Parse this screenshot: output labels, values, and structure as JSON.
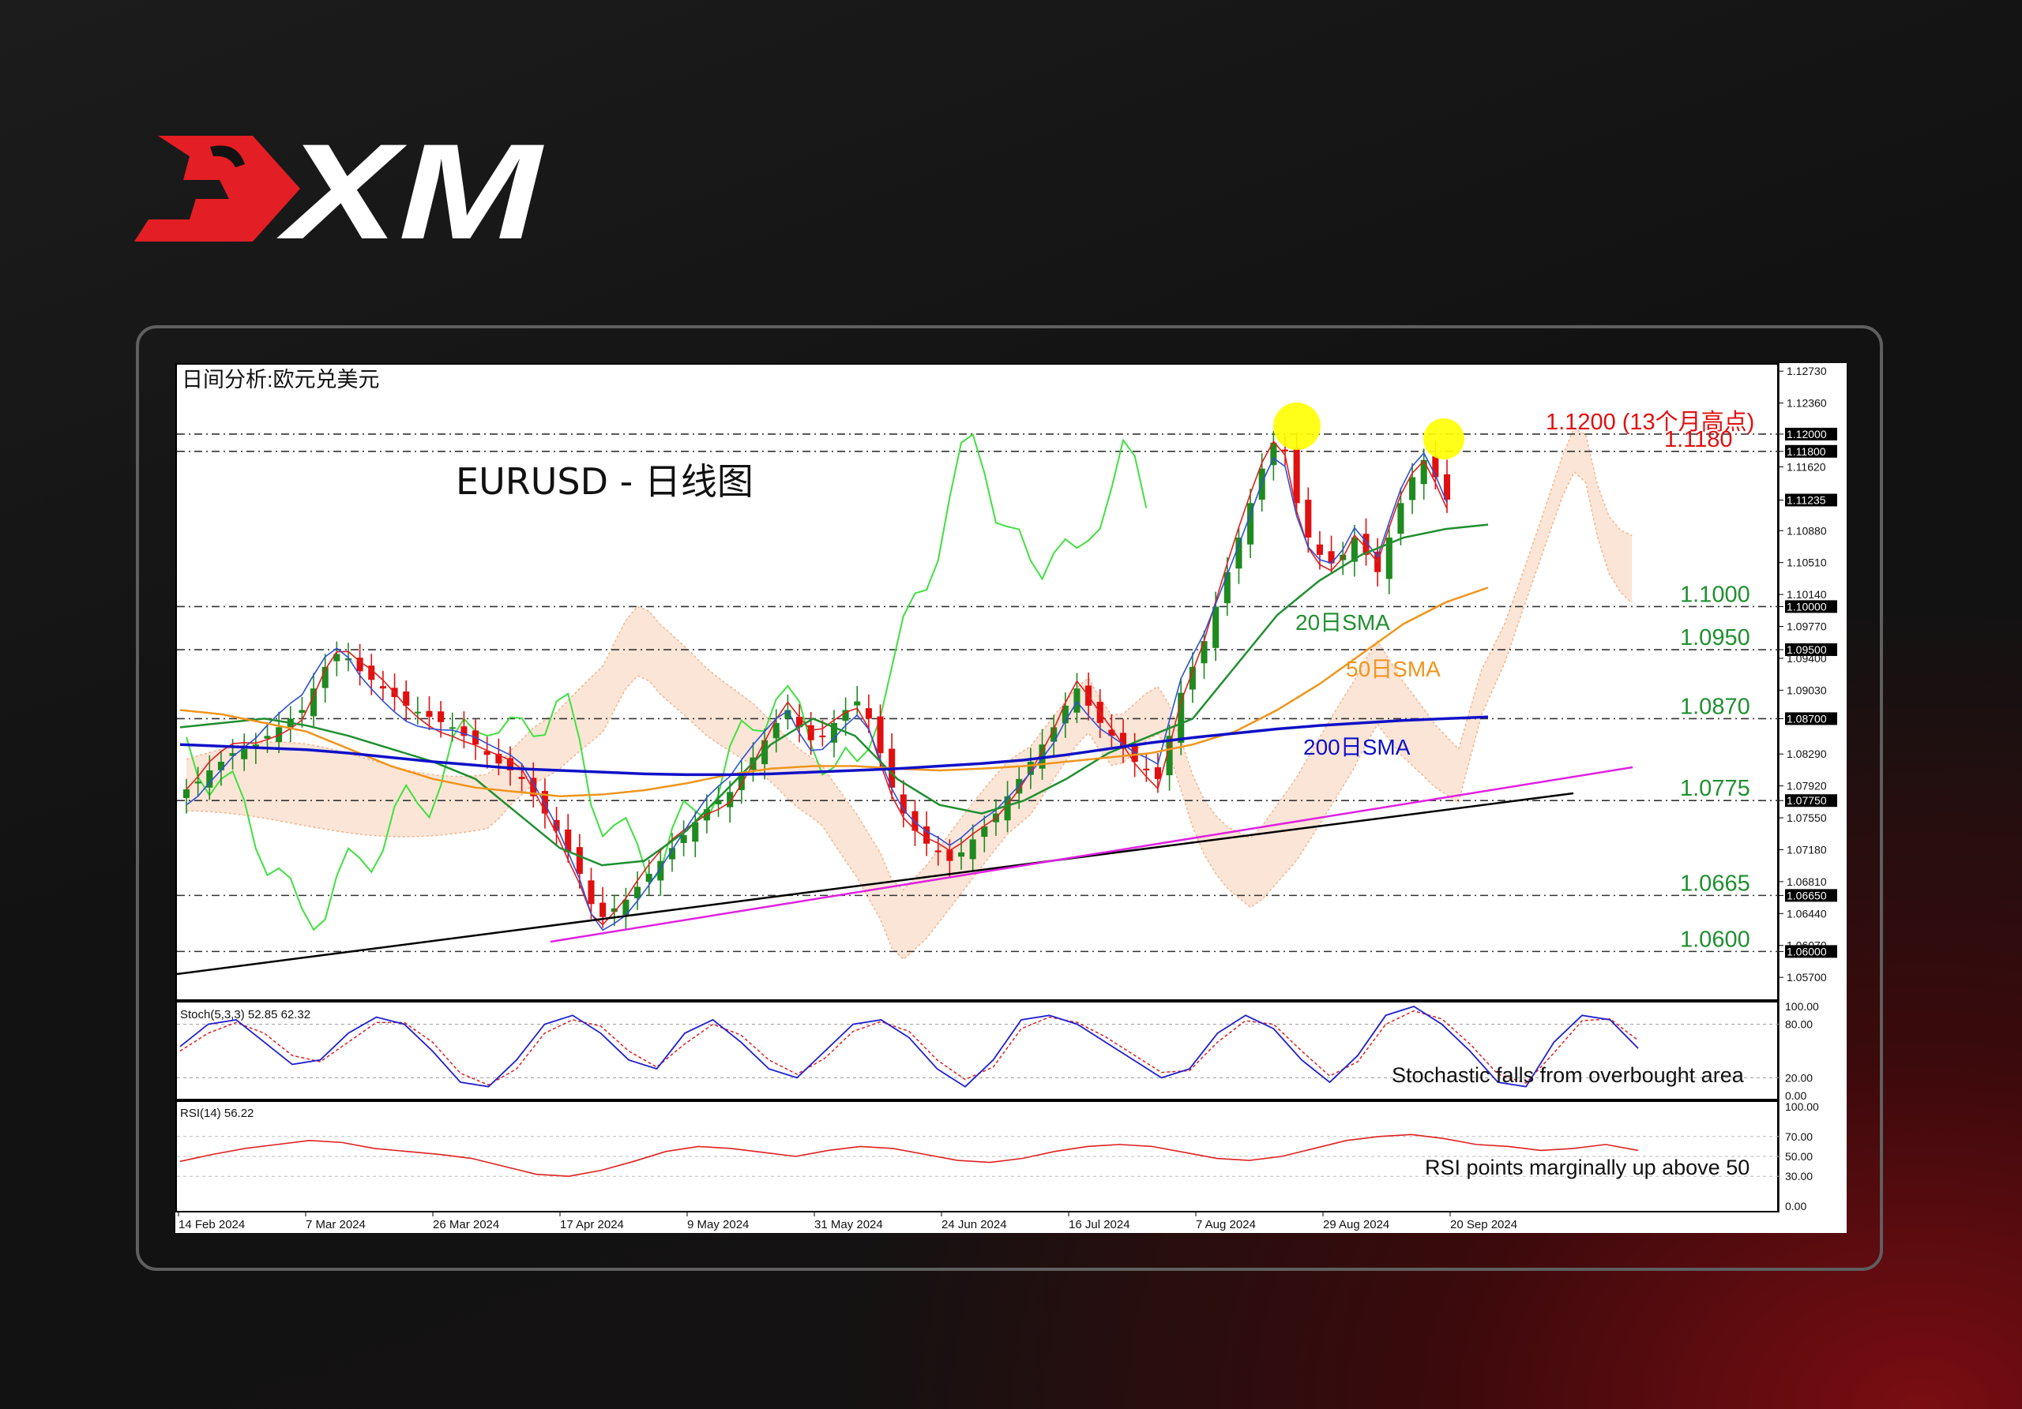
{
  "brand": {
    "logo_text": "XM"
  },
  "colors": {
    "brand_red": "#e31e24",
    "candle_up": "#1f8a1f",
    "candle_down": "#e01010",
    "sma20": "#1f8f2f",
    "sma50": "#f0951c",
    "sma200": "#1010c8",
    "tenkan": "#e02020",
    "kijun": "#2f50d8",
    "chikou": "#40e040",
    "cloud": "#f4b48c",
    "trend_black": "#000000",
    "trend_magenta": "#e020e0",
    "highlight": "#ffff00",
    "level_green": "#1f8f2f",
    "level_red": "#e01010",
    "stoch_main": "#1f1fd0",
    "stoch_signal": "#e02020",
    "rsi": "#e02020"
  },
  "chart_data": {
    "type": "line",
    "title": "日间分析:欧元兑美元",
    "subtitle": "EURUSD - 日线图",
    "x_tick_labels": [
      "14 Feb 2024",
      "7 Mar 2024",
      "26 Mar 2024",
      "17 Apr 2024",
      "9 May 2024",
      "31 May 2024",
      "24 Jun 2024",
      "16 Jul 2024",
      "7 Aug 2024",
      "29 Aug 2024",
      "20 Sep 2024"
    ],
    "y_tick_labels": [
      "1.12730",
      "1.12360",
      "1.12000",
      "1.11800",
      "1.11620",
      "1.11235",
      "1.10880",
      "1.10510",
      "1.10140",
      "1.10000",
      "1.09770",
      "1.09500",
      "1.09400",
      "1.09030",
      "1.08700",
      "1.08290",
      "1.07920",
      "1.07750",
      "1.07550",
      "1.07180",
      "1.06810",
      "1.06650",
      "1.06440",
      "1.06070",
      "1.06000",
      "1.05700"
    ],
    "ylim": [
      1.055,
      1.1275
    ],
    "current_price": "1.11235",
    "close": [
      1.0788,
      1.0797,
      1.081,
      1.082,
      1.083,
      1.0835,
      1.084,
      1.085,
      1.086,
      1.087,
      1.088,
      1.0905,
      1.093,
      1.0945,
      1.094,
      1.0925,
      1.0915,
      1.0905,
      1.0895,
      1.0885,
      1.0878,
      1.0872,
      1.0866,
      1.086,
      1.085,
      1.084,
      1.0828,
      1.0818,
      1.081,
      1.08,
      1.078,
      1.076,
      1.074,
      1.0715,
      1.069,
      1.0655,
      1.064,
      1.065,
      1.066,
      1.0675,
      1.069,
      1.0705,
      1.072,
      1.0735,
      1.075,
      1.0765,
      1.0775,
      1.0785,
      1.0805,
      1.0825,
      1.0845,
      1.0865,
      1.088,
      1.086,
      1.0845,
      1.085,
      1.0865,
      1.088,
      1.089,
      1.087,
      1.083,
      1.079,
      1.076,
      1.074,
      1.0725,
      1.0715,
      1.0705,
      1.0715,
      1.073,
      1.0745,
      1.076,
      1.078,
      1.08,
      1.082,
      1.084,
      1.086,
      1.0885,
      1.0905,
      1.0885,
      1.0865,
      1.085,
      1.0835,
      1.082,
      1.081,
      1.08,
      1.085,
      1.09,
      1.093,
      1.096,
      1.1,
      1.104,
      1.108,
      1.112,
      1.116,
      1.119,
      1.118,
      1.112,
      1.108,
      1.106,
      1.105,
      1.106,
      1.108,
      1.106,
      1.104,
      1.108,
      1.112,
      1.115,
      1.117,
      1.115,
      1.1124
    ],
    "series": [
      {
        "name": "20日SMA",
        "values": [
          1.086,
          1.0865,
          1.087,
          1.0862,
          1.085,
          1.0835,
          1.082,
          1.08,
          1.076,
          1.072,
          1.07,
          1.0705,
          1.074,
          1.079,
          1.084,
          1.087,
          1.085,
          1.08,
          1.077,
          1.076,
          1.0775,
          1.08,
          1.083,
          1.085,
          1.087,
          1.093,
          1.099,
          1.103,
          1.106,
          1.108,
          1.109,
          1.1095
        ]
      },
      {
        "name": "50日SMA",
        "values": [
          1.088,
          1.0875,
          1.0865,
          1.0855,
          1.0835,
          1.0815,
          1.08,
          1.079,
          1.0785,
          1.078,
          1.0782,
          1.0787,
          1.0795,
          1.0805,
          1.0812,
          1.0815,
          1.0815,
          1.0812,
          1.081,
          1.0812,
          1.0815,
          1.082,
          1.0825,
          1.083,
          1.084,
          1.0855,
          1.088,
          1.091,
          1.0945,
          1.098,
          1.1005,
          1.1022
        ]
      },
      {
        "name": "200日SMA",
        "values": [
          1.084,
          1.0838,
          1.0836,
          1.0834,
          1.083,
          1.0825,
          1.082,
          1.0816,
          1.0812,
          1.081,
          1.0808,
          1.0806,
          1.0805,
          1.0805,
          1.0806,
          1.0808,
          1.081,
          1.0812,
          1.0815,
          1.0818,
          1.0822,
          1.0828,
          1.0835,
          1.0842,
          1.0848,
          1.0853,
          1.0858,
          1.0862,
          1.0865,
          1.0868,
          1.087,
          1.0872
        ]
      }
    ],
    "horizontal_levels": [
      {
        "label": "1.1200 (13个月高点)",
        "value": 1.12
      },
      {
        "label": "1.1180",
        "value": 1.118
      },
      {
        "label": "1.1000",
        "value": 1.1
      },
      {
        "label": "1.0950",
        "value": 1.095
      },
      {
        "label": "1.0870",
        "value": 1.087
      },
      {
        "label": "1.0775",
        "value": 1.0775
      },
      {
        "label": "1.0665",
        "value": 1.0665
      },
      {
        "label": "1.0600",
        "value": 1.06
      }
    ],
    "sma_labels": [
      "20日SMA",
      "50日SMA",
      "200日SMA"
    ],
    "stochastic": {
      "label": "Stoch(5,3,3) 52.85 62.32",
      "y_tick_labels": [
        "100.00",
        "80.00",
        "20.00",
        "0.00"
      ],
      "ylim": [
        0,
        100
      ],
      "main": [
        55,
        80,
        85,
        60,
        35,
        40,
        70,
        88,
        80,
        50,
        15,
        10,
        40,
        80,
        90,
        70,
        40,
        30,
        70,
        85,
        60,
        30,
        20,
        50,
        80,
        85,
        65,
        30,
        10,
        40,
        85,
        90,
        80,
        60,
        40,
        20,
        30,
        70,
        90,
        75,
        40,
        15,
        45,
        90,
        100,
        80,
        50,
        15,
        10,
        60,
        90,
        85,
        53
      ],
      "signal": [
        50,
        70,
        82,
        70,
        45,
        38,
        60,
        82,
        82,
        60,
        25,
        12,
        30,
        70,
        85,
        78,
        50,
        32,
        58,
        80,
        68,
        40,
        24,
        42,
        72,
        83,
        72,
        40,
        18,
        32,
        75,
        88,
        82,
        66,
        46,
        26,
        28,
        60,
        84,
        80,
        50,
        22,
        38,
        80,
        95,
        86,
        58,
        24,
        14,
        48,
        84,
        86,
        62
      ],
      "annotation": "Stochastic falls from overbought area"
    },
    "rsi": {
      "label": "RSI(14) 56.22",
      "y_tick_labels": [
        "100.00",
        "70.00",
        "50.00",
        "30.00",
        "0.00"
      ],
      "ylim": [
        0,
        100
      ],
      "values": [
        45,
        52,
        58,
        62,
        66,
        64,
        58,
        55,
        52,
        48,
        40,
        32,
        30,
        36,
        45,
        55,
        60,
        58,
        54,
        50,
        56,
        60,
        58,
        52,
        46,
        44,
        48,
        55,
        60,
        62,
        60,
        54,
        48,
        46,
        50,
        58,
        66,
        70,
        72,
        68,
        62,
        60,
        56,
        58,
        62,
        56
      ],
      "annotation": "RSI points marginally up above 50"
    }
  }
}
